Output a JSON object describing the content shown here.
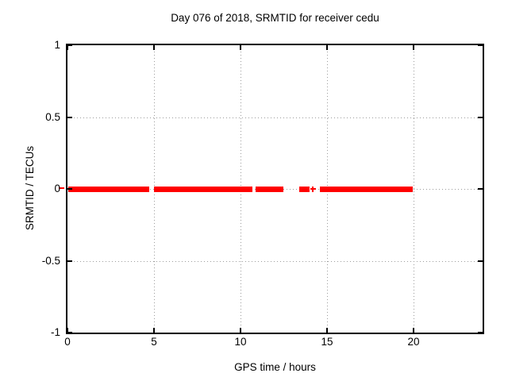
{
  "page": {
    "background": "#ffffff"
  },
  "chart_data": {
    "type": "scatter",
    "title": "Day 076 of 2018, SRMTID for receiver cedu",
    "xlabel": "GPS time / hours",
    "ylabel": "SRMTID / TECUs",
    "xlim": [
      0,
      24
    ],
    "ylim": [
      -1,
      1
    ],
    "xticks": [
      0,
      5,
      10,
      15,
      20
    ],
    "xtick_labels": [
      "0",
      "5",
      "10",
      "15",
      "20"
    ],
    "yticks": [
      1,
      0.5,
      0,
      -0.5,
      -1
    ],
    "ytick_labels": [
      "1",
      "0.5",
      "0",
      "-0.5",
      "-1"
    ],
    "grid": true,
    "legend": "none",
    "series": [
      {
        "name": "SRMTID",
        "color": "#ff0000",
        "marker": "plus",
        "y_value": 0,
        "segments_hours": [
          [
            0.05,
            4.73
          ],
          [
            4.99,
            10.67
          ],
          [
            10.86,
            12.46
          ],
          [
            13.38,
            13.97
          ],
          [
            14.57,
            19.93
          ]
        ],
        "isolated_points_hours": [
          14.2
        ],
        "has_stray_mark_left_of_axis": true
      }
    ],
    "colors": {
      "axis": "#000000",
      "grid": "#9c9c9c",
      "text": "#000000"
    }
  }
}
